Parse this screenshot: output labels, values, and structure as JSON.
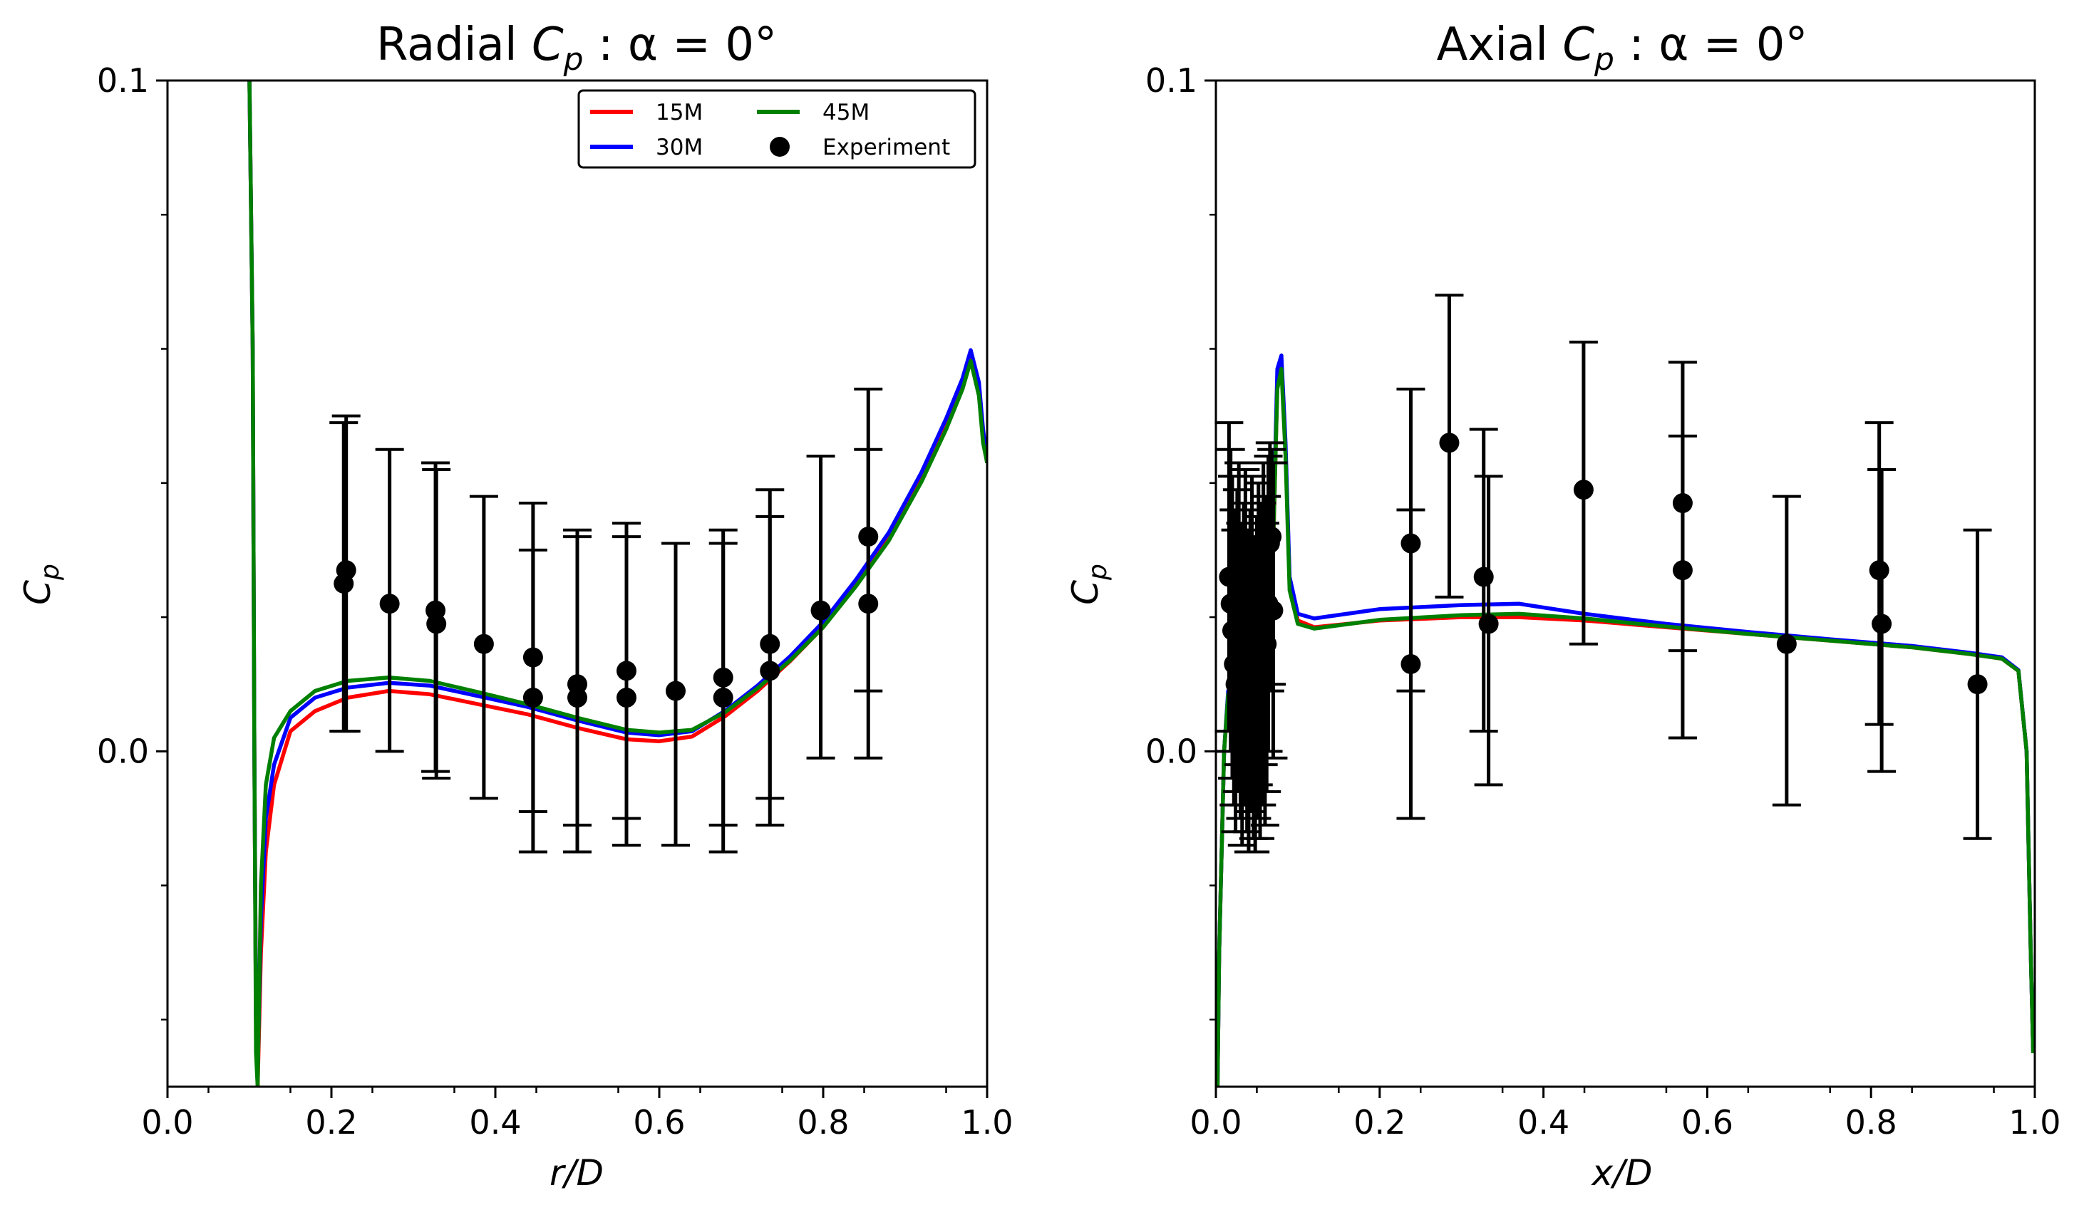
{
  "chart_data": [
    {
      "type": "line",
      "title_prefix": "Radial ",
      "title_var": "C",
      "title_sub": "p",
      "title_suffix": " : α = 0°",
      "xlabel": "r/D",
      "ylabel_var": "C",
      "ylabel_sub": "p",
      "xlim": [
        0.0,
        1.0
      ],
      "ylim": [
        -0.05,
        0.1
      ],
      "xticks": [
        0.0,
        0.2,
        0.4,
        0.6,
        0.8,
        1.0
      ],
      "xtick_labels": [
        "0.0",
        "0.2",
        "0.4",
        "0.6",
        "0.8",
        "1.0"
      ],
      "yticks": [
        0.0,
        0.1
      ],
      "ytick_labels": [
        "0.0",
        "0.1"
      ],
      "legend": {
        "position": "top-right",
        "entries": [
          "15M",
          "45M",
          "30M",
          "Experiment"
        ]
      },
      "series": [
        {
          "name": "15M",
          "color": "#ff0000",
          "x": [
            0.1,
            0.104,
            0.106,
            0.108,
            0.11,
            0.114,
            0.12,
            0.13,
            0.15,
            0.18,
            0.22,
            0.27,
            0.32,
            0.38,
            0.44,
            0.5,
            0.56,
            0.6,
            0.64,
            0.68,
            0.72,
            0.76,
            0.8,
            0.84,
            0.88,
            0.92,
            0.95,
            0.97,
            0.98,
            0.99,
            0.995,
            1.0
          ],
          "y": [
            0.1,
            0.06,
            0.0,
            -0.04,
            -0.05,
            -0.03,
            -0.015,
            -0.005,
            0.003,
            0.006,
            0.008,
            0.009,
            0.0085,
            0.007,
            0.0055,
            0.0035,
            0.0018,
            0.0015,
            0.0022,
            0.0052,
            0.009,
            0.0135,
            0.0185,
            0.0248,
            0.0318,
            0.0408,
            0.0488,
            0.0548,
            0.0588,
            0.054,
            0.047,
            0.043
          ]
        },
        {
          "name": "30M",
          "color": "#0000ff",
          "x": [
            0.1,
            0.104,
            0.106,
            0.108,
            0.11,
            0.114,
            0.12,
            0.13,
            0.15,
            0.18,
            0.22,
            0.27,
            0.32,
            0.38,
            0.44,
            0.5,
            0.56,
            0.6,
            0.64,
            0.68,
            0.72,
            0.76,
            0.8,
            0.84,
            0.88,
            0.92,
            0.95,
            0.97,
            0.98,
            0.99,
            0.995,
            1.0
          ],
          "y": [
            0.1,
            0.06,
            0.0,
            -0.04,
            -0.048,
            -0.025,
            -0.01,
            -0.002,
            0.005,
            0.008,
            0.0095,
            0.0102,
            0.0098,
            0.0082,
            0.0066,
            0.0046,
            0.0028,
            0.0024,
            0.003,
            0.006,
            0.0098,
            0.0142,
            0.0193,
            0.0256,
            0.0326,
            0.0416,
            0.0496,
            0.0556,
            0.0598,
            0.055,
            0.048,
            0.043
          ]
        },
        {
          "name": "45M",
          "color": "#008000",
          "x": [
            0.1,
            0.104,
            0.106,
            0.108,
            0.11,
            0.114,
            0.12,
            0.13,
            0.15,
            0.18,
            0.22,
            0.27,
            0.32,
            0.38,
            0.44,
            0.5,
            0.56,
            0.6,
            0.64,
            0.68,
            0.72,
            0.76,
            0.8,
            0.84,
            0.88,
            0.92,
            0.95,
            0.97,
            0.98,
            0.99,
            0.995,
            1.0
          ],
          "y": [
            0.1,
            0.06,
            0.0,
            -0.045,
            -0.05,
            -0.02,
            -0.005,
            0.002,
            0.006,
            0.009,
            0.0105,
            0.011,
            0.0105,
            0.0088,
            0.007,
            0.005,
            0.0032,
            0.0028,
            0.0032,
            0.0058,
            0.0094,
            0.0136,
            0.0185,
            0.0246,
            0.0314,
            0.0402,
            0.048,
            0.054,
            0.0582,
            0.053,
            0.046,
            0.043
          ]
        }
      ],
      "experiment": {
        "name": "Experiment",
        "points": [
          {
            "x": 0.215,
            "y": 0.025,
            "lo": 0.003,
            "hi": 0.049
          },
          {
            "x": 0.218,
            "y": 0.027,
            "lo": 0.003,
            "hi": 0.05
          },
          {
            "x": 0.271,
            "y": 0.022,
            "lo": 0.0,
            "hi": 0.045
          },
          {
            "x": 0.327,
            "y": 0.021,
            "lo": -0.003,
            "hi": 0.043
          },
          {
            "x": 0.328,
            "y": 0.019,
            "lo": -0.004,
            "hi": 0.042
          },
          {
            "x": 0.386,
            "y": 0.016,
            "lo": -0.007,
            "hi": 0.038
          },
          {
            "x": 0.446,
            "y": 0.014,
            "lo": -0.009,
            "hi": 0.037
          },
          {
            "x": 0.446,
            "y": 0.008,
            "lo": -0.015,
            "hi": 0.03
          },
          {
            "x": 0.5,
            "y": 0.01,
            "lo": -0.011,
            "hi": 0.033
          },
          {
            "x": 0.5,
            "y": 0.008,
            "lo": -0.015,
            "hi": 0.032
          },
          {
            "x": 0.56,
            "y": 0.012,
            "lo": -0.01,
            "hi": 0.034
          },
          {
            "x": 0.56,
            "y": 0.008,
            "lo": -0.014,
            "hi": 0.032
          },
          {
            "x": 0.62,
            "y": 0.009,
            "lo": -0.014,
            "hi": 0.031
          },
          {
            "x": 0.678,
            "y": 0.011,
            "lo": -0.011,
            "hi": 0.033
          },
          {
            "x": 0.678,
            "y": 0.008,
            "lo": -0.015,
            "hi": 0.031
          },
          {
            "x": 0.735,
            "y": 0.016,
            "lo": -0.007,
            "hi": 0.039
          },
          {
            "x": 0.735,
            "y": 0.012,
            "lo": -0.011,
            "hi": 0.035
          },
          {
            "x": 0.797,
            "y": 0.021,
            "lo": -0.001,
            "hi": 0.044
          },
          {
            "x": 0.855,
            "y": 0.032,
            "lo": 0.009,
            "hi": 0.054
          },
          {
            "x": 0.855,
            "y": 0.022,
            "lo": -0.001,
            "hi": 0.045
          }
        ]
      }
    },
    {
      "type": "line",
      "title_prefix": "Axial ",
      "title_var": "C",
      "title_sub": "p",
      "title_suffix": " : α = 0°",
      "xlabel": "x/D",
      "ylabel_var": "C",
      "ylabel_sub": "p",
      "xlim": [
        0.0,
        1.0
      ],
      "ylim": [
        -0.05,
        0.1
      ],
      "xticks": [
        0.0,
        0.2,
        0.4,
        0.6,
        0.8,
        1.0
      ],
      "xtick_labels": [
        "0.0",
        "0.2",
        "0.4",
        "0.6",
        "0.8",
        "1.0"
      ],
      "yticks": [
        0.0,
        0.1
      ],
      "ytick_labels": [
        "0.0",
        "0.1"
      ],
      "series": [
        {
          "name": "15M",
          "color": "#ff0000",
          "x": [
            0.002,
            0.004,
            0.006,
            0.01,
            0.015,
            0.02,
            0.03,
            0.04,
            0.05,
            0.06,
            0.07,
            0.075,
            0.08,
            0.085,
            0.09,
            0.1,
            0.12,
            0.2,
            0.3,
            0.37,
            0.45,
            0.55,
            0.65,
            0.75,
            0.85,
            0.92,
            0.96,
            0.98,
            0.99,
            0.995,
            0.998
          ],
          "y": [
            -0.05,
            -0.03,
            -0.02,
            0.0,
            0.008,
            0.009,
            0.008,
            0.008,
            0.01,
            0.015,
            0.03,
            0.055,
            0.058,
            0.045,
            0.025,
            0.0195,
            0.0185,
            0.0195,
            0.02,
            0.02,
            0.0195,
            0.0185,
            0.0175,
            0.0165,
            0.0155,
            0.0145,
            0.0138,
            0.012,
            0.0,
            -0.03,
            -0.045
          ]
        },
        {
          "name": "30M",
          "color": "#0000ff",
          "x": [
            0.002,
            0.004,
            0.006,
            0.01,
            0.015,
            0.02,
            0.03,
            0.04,
            0.05,
            0.06,
            0.07,
            0.075,
            0.08,
            0.085,
            0.09,
            0.1,
            0.12,
            0.2,
            0.3,
            0.37,
            0.45,
            0.55,
            0.65,
            0.75,
            0.85,
            0.92,
            0.96,
            0.98,
            0.99,
            0.995,
            0.998
          ],
          "y": [
            -0.05,
            -0.03,
            -0.02,
            0.0,
            0.009,
            0.01,
            0.009,
            0.009,
            0.011,
            0.016,
            0.032,
            0.057,
            0.059,
            0.046,
            0.026,
            0.0205,
            0.0198,
            0.0212,
            0.0218,
            0.022,
            0.0205,
            0.019,
            0.0178,
            0.0167,
            0.0157,
            0.0147,
            0.014,
            0.0121,
            0.0,
            -0.03,
            -0.045
          ]
        },
        {
          "name": "45M",
          "color": "#008000",
          "x": [
            0.002,
            0.004,
            0.006,
            0.01,
            0.015,
            0.02,
            0.03,
            0.04,
            0.05,
            0.06,
            0.07,
            0.075,
            0.08,
            0.085,
            0.09,
            0.1,
            0.12,
            0.2,
            0.3,
            0.37,
            0.45,
            0.55,
            0.65,
            0.75,
            0.85,
            0.92,
            0.96,
            0.98,
            0.99,
            0.995,
            0.998
          ],
          "y": [
            -0.05,
            -0.03,
            -0.02,
            0.0,
            0.0085,
            0.0095,
            0.0085,
            0.0085,
            0.0105,
            0.0155,
            0.031,
            0.054,
            0.057,
            0.044,
            0.024,
            0.019,
            0.0183,
            0.0196,
            0.0203,
            0.0205,
            0.0198,
            0.0186,
            0.0175,
            0.0165,
            0.0155,
            0.0145,
            0.0138,
            0.012,
            0.0,
            -0.03,
            -0.045
          ]
        }
      ],
      "experiment": {
        "name": "Experiment",
        "points": [
          {
            "x": 0.016,
            "y": 0.026,
            "lo": 0.003,
            "hi": 0.049
          },
          {
            "x": 0.018,
            "y": 0.022,
            "lo": 0.0,
            "hi": 0.045
          },
          {
            "x": 0.02,
            "y": 0.018,
            "lo": -0.004,
            "hi": 0.041
          },
          {
            "x": 0.022,
            "y": 0.013,
            "lo": -0.008,
            "hi": 0.036
          },
          {
            "x": 0.024,
            "y": 0.01,
            "lo": -0.012,
            "hi": 0.033
          },
          {
            "x": 0.026,
            "y": 0.016,
            "lo": -0.006,
            "hi": 0.039
          },
          {
            "x": 0.028,
            "y": 0.02,
            "lo": -0.002,
            "hi": 0.043
          },
          {
            "x": 0.03,
            "y": 0.012,
            "lo": -0.01,
            "hi": 0.034
          },
          {
            "x": 0.032,
            "y": 0.008,
            "lo": -0.014,
            "hi": 0.031
          },
          {
            "x": 0.034,
            "y": 0.014,
            "lo": -0.008,
            "hi": 0.037
          },
          {
            "x": 0.036,
            "y": 0.019,
            "lo": -0.003,
            "hi": 0.042
          },
          {
            "x": 0.038,
            "y": 0.01,
            "lo": -0.012,
            "hi": 0.033
          },
          {
            "x": 0.04,
            "y": 0.006,
            "lo": -0.015,
            "hi": 0.029
          },
          {
            "x": 0.042,
            "y": 0.013,
            "lo": -0.009,
            "hi": 0.036
          },
          {
            "x": 0.044,
            "y": 0.018,
            "lo": -0.004,
            "hi": 0.041
          },
          {
            "x": 0.046,
            "y": 0.009,
            "lo": -0.013,
            "hi": 0.032
          },
          {
            "x": 0.048,
            "y": 0.005,
            "lo": -0.015,
            "hi": 0.028
          },
          {
            "x": 0.05,
            "y": 0.012,
            "lo": -0.01,
            "hi": 0.035
          },
          {
            "x": 0.052,
            "y": 0.017,
            "lo": -0.005,
            "hi": 0.04
          },
          {
            "x": 0.054,
            "y": 0.008,
            "lo": -0.013,
            "hi": 0.031
          },
          {
            "x": 0.056,
            "y": 0.014,
            "lo": -0.008,
            "hi": 0.037
          },
          {
            "x": 0.058,
            "y": 0.02,
            "lo": -0.002,
            "hi": 0.043
          },
          {
            "x": 0.06,
            "y": 0.011,
            "lo": -0.011,
            "hi": 0.034
          },
          {
            "x": 0.062,
            "y": 0.016,
            "lo": -0.006,
            "hi": 0.038
          },
          {
            "x": 0.064,
            "y": 0.022,
            "lo": 0.0,
            "hi": 0.044
          },
          {
            "x": 0.066,
            "y": 0.031,
            "lo": 0.009,
            "hi": 0.046
          },
          {
            "x": 0.068,
            "y": 0.032,
            "lo": 0.01,
            "hi": 0.045
          },
          {
            "x": 0.07,
            "y": 0.021,
            "lo": -0.001,
            "hi": 0.043
          },
          {
            "x": 0.238,
            "y": 0.031,
            "lo": 0.009,
            "hi": 0.054
          },
          {
            "x": 0.238,
            "y": 0.013,
            "lo": -0.01,
            "hi": 0.036
          },
          {
            "x": 0.285,
            "y": 0.046,
            "lo": 0.023,
            "hi": 0.068
          },
          {
            "x": 0.327,
            "y": 0.026,
            "lo": 0.003,
            "hi": 0.048
          },
          {
            "x": 0.333,
            "y": 0.019,
            "lo": -0.005,
            "hi": 0.041
          },
          {
            "x": 0.449,
            "y": 0.039,
            "lo": 0.016,
            "hi": 0.061
          },
          {
            "x": 0.57,
            "y": 0.037,
            "lo": 0.015,
            "hi": 0.058
          },
          {
            "x": 0.57,
            "y": 0.027,
            "lo": 0.002,
            "hi": 0.047
          },
          {
            "x": 0.697,
            "y": 0.016,
            "lo": -0.008,
            "hi": 0.038
          },
          {
            "x": 0.81,
            "y": 0.027,
            "lo": 0.004,
            "hi": 0.049
          },
          {
            "x": 0.813,
            "y": 0.019,
            "lo": -0.003,
            "hi": 0.042
          },
          {
            "x": 0.93,
            "y": 0.01,
            "lo": -0.013,
            "hi": 0.033
          }
        ]
      }
    }
  ]
}
